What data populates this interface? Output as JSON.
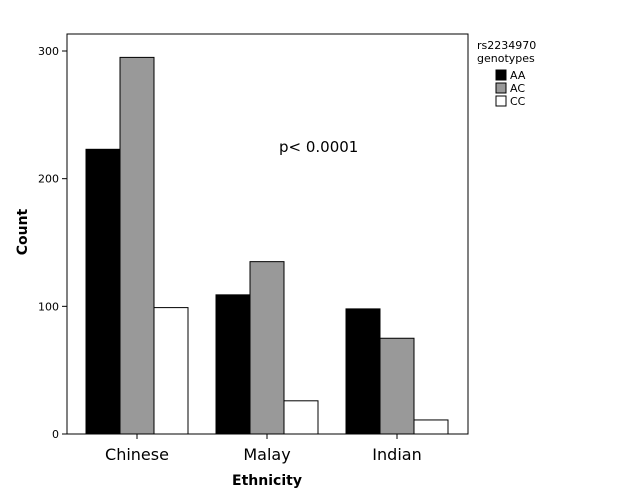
{
  "chart_data": {
    "type": "bar",
    "xlabel": "Ethnicity",
    "ylabel": "Count",
    "ylim": [
      0,
      300
    ],
    "yticks": [
      0,
      100,
      200,
      300
    ],
    "categories": [
      "Chinese",
      "Malay",
      "Indian"
    ],
    "legend": {
      "title_line1": "rs2234970",
      "title_line2": "genotypes",
      "placement": "right"
    },
    "series": [
      {
        "name": "AA",
        "values": [
          223,
          109,
          98
        ],
        "color": "#000000"
      },
      {
        "name": "AC",
        "values": [
          295,
          135,
          75
        ],
        "color": "#999999"
      },
      {
        "name": "CC",
        "values": [
          99,
          26,
          11
        ],
        "color": "#ffffff"
      }
    ],
    "annotation": "p< 0.0001",
    "grid": false
  }
}
